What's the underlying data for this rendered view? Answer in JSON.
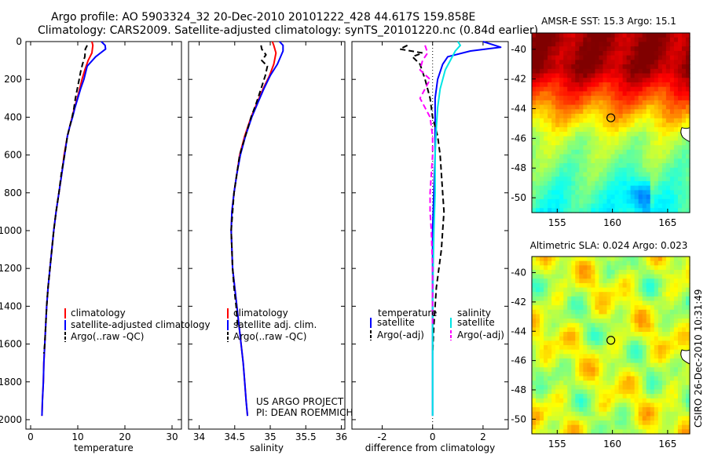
{
  "header": {
    "title_line1": "Argo profile: AO 5903324_32 20-Dec-2010 20101222_428 44.617S 159.858E",
    "title_line2": "Climatology: CARS2009. Satellite-adjusted climatology: synTS_20101220.nc (0.84d earlier)"
  },
  "colors": {
    "climatology": "#ff0000",
    "satellite": "#0000ff",
    "argo": "#000000",
    "satellite_salinity": "#00e5e5",
    "argo_salinity": "#ff00ff"
  },
  "footer": {
    "stamp": "CSIRO 26-Dec-2010 10:31:49",
    "project_line1": "US ARGO PROJECT",
    "project_line2": "PI: DEAN ROEMMICH"
  },
  "maps": [
    {
      "title": "AMSR-E SST: 15.3 Argo: 15.1",
      "xticks": [
        "155",
        "160",
        "165"
      ],
      "yticks": [
        "-40",
        "-42",
        "-44",
        "-46",
        "-48",
        "-50"
      ],
      "xlim": [
        152.7,
        167.0
      ],
      "ylim": [
        -51.0,
        -38.9
      ],
      "marker": {
        "lon": 159.858,
        "lat": -44.617
      },
      "colormap": "jet"
    },
    {
      "title": "Altimetric SLA: 0.024 Argo: 0.023",
      "xticks": [
        "155",
        "160",
        "165"
      ],
      "yticks": [
        "-40",
        "-42",
        "-44",
        "-46",
        "-48",
        "-50"
      ],
      "xlim": [
        152.7,
        167.0
      ],
      "ylim": [
        -51.0,
        -38.9
      ],
      "marker": {
        "lon": 159.858,
        "lat": -44.617
      },
      "colormap": "jet"
    }
  ],
  "chart_data": [
    {
      "type": "line",
      "xlabel": "temperature",
      "ylabel": "",
      "xlim": [
        -1,
        32
      ],
      "ylim": [
        2050,
        0
      ],
      "xticks": [
        "0",
        "10",
        "20",
        "30"
      ],
      "yticks": [
        "0",
        "200",
        "400",
        "600",
        "800",
        "1000",
        "1200",
        "1400",
        "1600",
        "1800",
        "2000"
      ],
      "legend": [
        "climatology",
        "satellite-adjusted climatology",
        "Argo(..raw -QC)"
      ],
      "legend_position": "bottom-right",
      "series": [
        {
          "name": "climatology",
          "style": "solid",
          "color": "#ff0000",
          "x": [
            13.0,
            13.2,
            13.0,
            12.2,
            11.5,
            10.9,
            10.4,
            9.9,
            9.3,
            8.8,
            8.3,
            7.8,
            7.1,
            6.6,
            6.0,
            5.4,
            4.9,
            4.5,
            4.1,
            3.7,
            3.4,
            3.2,
            3.0,
            2.8,
            2.7,
            2.6,
            2.5,
            2.4
          ],
          "y": [
            0,
            20,
            60,
            100,
            150,
            200,
            250,
            300,
            350,
            400,
            450,
            500,
            600,
            700,
            800,
            900,
            1000,
            1100,
            1200,
            1300,
            1400,
            1500,
            1600,
            1700,
            1800,
            1850,
            1900,
            1980
          ]
        },
        {
          "name": "satellite-adjusted climatology",
          "style": "solid",
          "color": "#0000ff",
          "x": [
            15.0,
            15.8,
            15.9,
            13.8,
            12.0,
            11.3,
            10.6,
            10.0,
            9.4,
            8.9,
            8.3,
            7.8,
            7.2,
            6.6,
            6.0,
            5.4,
            4.9,
            4.5,
            4.1,
            3.7,
            3.4,
            3.2,
            3.0,
            2.8,
            2.7,
            2.6,
            2.5,
            2.4
          ],
          "y": [
            0,
            20,
            40,
            80,
            130,
            200,
            250,
            300,
            350,
            400,
            450,
            500,
            600,
            700,
            800,
            900,
            1000,
            1100,
            1200,
            1300,
            1400,
            1500,
            1600,
            1700,
            1800,
            1850,
            1900,
            1980
          ]
        },
        {
          "name": "Argo(..raw -QC)",
          "style": "dashed",
          "color": "#000000",
          "x": [
            12.0,
            11.6,
            11.5,
            11.0,
            10.6,
            10.3,
            9.9,
            9.5,
            9.2,
            8.8,
            8.3,
            7.8,
            7.2,
            6.5,
            6.0,
            5.4,
            4.9,
            4.5,
            4.1,
            3.7,
            3.4,
            3.2,
            3.0,
            2.8
          ],
          "y": [
            20,
            40,
            80,
            120,
            160,
            200,
            250,
            300,
            350,
            400,
            450,
            500,
            600,
            700,
            800,
            900,
            1000,
            1100,
            1200,
            1300,
            1400,
            1500,
            1600,
            1650
          ]
        }
      ]
    },
    {
      "type": "line",
      "xlabel": "salinity",
      "ylabel": "",
      "xlim": [
        33.85,
        36.05
      ],
      "ylim": [
        2050,
        0
      ],
      "xticks": [
        "34",
        "34.5",
        "35",
        "35.5",
        "36"
      ],
      "yticks": [],
      "legend": [
        "climatology",
        "satellite adj. clim.",
        "Argo(..raw -QC)"
      ],
      "legend_position": "bottom-right",
      "annotations": [
        "US ARGO PROJECT",
        "PI: DEAN ROEMMICH"
      ],
      "series": [
        {
          "name": "climatology",
          "style": "solid",
          "color": "#ff0000",
          "x": [
            35.03,
            35.05,
            35.08,
            35.05,
            34.99,
            34.9,
            34.82,
            34.73,
            34.64,
            34.57,
            34.53,
            34.49,
            34.46,
            34.45,
            34.46,
            34.47,
            34.5,
            34.53,
            34.56,
            34.59,
            34.62,
            34.64,
            34.66,
            34.68
          ],
          "y": [
            0,
            20,
            60,
            120,
            180,
            250,
            320,
            400,
            500,
            600,
            700,
            800,
            900,
            1000,
            1100,
            1200,
            1300,
            1400,
            1500,
            1600,
            1700,
            1800,
            1900,
            1980
          ]
        },
        {
          "name": "satellite adj. clim.",
          "style": "solid",
          "color": "#0000ff",
          "x": [
            35.13,
            35.18,
            35.18,
            35.1,
            35.0,
            34.91,
            34.83,
            34.74,
            34.65,
            34.58,
            34.53,
            34.49,
            34.46,
            34.45,
            34.46,
            34.47,
            34.5,
            34.53,
            34.56,
            34.59,
            34.62,
            34.64,
            34.66,
            34.68
          ],
          "y": [
            0,
            20,
            50,
            120,
            180,
            250,
            320,
            400,
            500,
            600,
            700,
            800,
            900,
            1000,
            1100,
            1200,
            1300,
            1400,
            1500,
            1600,
            1700,
            1800,
            1900,
            1980
          ]
        },
        {
          "name": "Argo(..raw -QC)",
          "style": "dashed",
          "color": "#000000",
          "x": [
            34.87,
            34.88,
            34.94,
            34.88,
            34.96,
            34.93,
            34.87,
            34.8,
            34.73,
            34.65,
            34.57,
            34.53,
            34.49,
            34.47,
            34.45,
            34.46,
            34.47,
            34.49,
            34.52,
            34.54
          ],
          "y": [
            20,
            40,
            70,
            100,
            130,
            180,
            250,
            330,
            400,
            500,
            600,
            700,
            800,
            900,
            1000,
            1100,
            1200,
            1300,
            1400,
            1500
          ]
        }
      ]
    },
    {
      "type": "line",
      "xlabel": "difference from climatology",
      "ylabel": "",
      "xlim": [
        -3.2,
        3.0
      ],
      "ylim": [
        2050,
        0
      ],
      "xticks": [
        "-2",
        "0",
        "2"
      ],
      "yticks": [],
      "legend_groups": [
        {
          "title": "temperature",
          "items": [
            "satellite",
            "Argo(-adj)"
          ]
        },
        {
          "title": "salinity",
          "items": [
            "satellite",
            "Argo(-adj)"
          ]
        }
      ],
      "legend_position": "bottom",
      "series": [
        {
          "name": "temperature satellite",
          "style": "solid",
          "color": "#0000ff",
          "x": [
            2.0,
            2.7,
            1.5,
            0.6,
            0.4,
            0.2,
            0.1,
            0.1,
            0.1,
            0.05,
            0.0,
            0.0,
            0.0,
            0.0,
            0.0
          ],
          "y": [
            0,
            30,
            50,
            80,
            120,
            200,
            300,
            400,
            600,
            800,
            1000,
            1200,
            1500,
            1800,
            1980
          ]
        },
        {
          "name": "temperature Argo(-adj)",
          "style": "dashed",
          "color": "#000000",
          "x": [
            -1.0,
            -1.3,
            -0.4,
            -0.8,
            -0.5,
            -0.3,
            -0.1,
            0.0,
            0.2,
            0.3,
            0.35,
            0.4,
            0.45,
            0.4,
            0.35,
            0.25,
            0.15,
            0.1,
            0.05,
            0.0
          ],
          "y": [
            20,
            40,
            60,
            80,
            120,
            200,
            300,
            400,
            500,
            600,
            700,
            800,
            900,
            1000,
            1100,
            1200,
            1300,
            1400,
            1500,
            1650
          ]
        },
        {
          "name": "salinity satellite",
          "style": "solid",
          "color": "#00e5e5",
          "x": [
            1.0,
            1.1,
            0.9,
            0.7,
            0.5,
            0.3,
            0.2,
            0.15,
            0.1,
            0.1,
            0.05,
            0.02,
            0.0,
            0.0,
            0.0
          ],
          "y": [
            0,
            20,
            50,
            100,
            150,
            250,
            350,
            450,
            600,
            800,
            1000,
            1200,
            1500,
            1800,
            1980
          ]
        },
        {
          "name": "salinity Argo(-adj)",
          "style": "dashed",
          "color": "#ff00ff",
          "x": [
            -0.3,
            -0.2,
            -0.4,
            -0.5,
            -0.1,
            -0.3,
            -0.5,
            -0.3,
            -0.1,
            0.0,
            0.0,
            -0.05,
            -0.1,
            -0.1,
            -0.05,
            0.0,
            0.0,
            0.0
          ],
          "y": [
            20,
            60,
            100,
            150,
            200,
            250,
            300,
            350,
            400,
            500,
            600,
            700,
            800,
            900,
            1000,
            1200,
            1400,
            1500
          ]
        }
      ]
    }
  ]
}
